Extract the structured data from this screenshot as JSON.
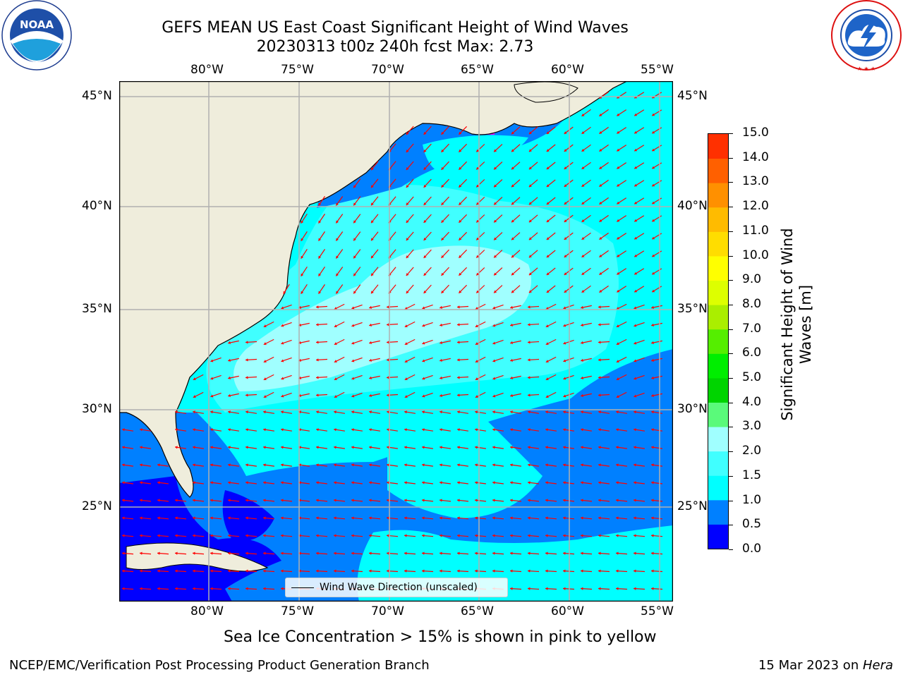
{
  "title": {
    "line1": "GEFS MEAN US East Coast Significant Height of Wind Waves",
    "line2": "20230313 t00z 240h fcst   Max: 2.73"
  },
  "logos": {
    "noaa": {
      "text": "NOAA",
      "ring_text": "NATIONAL OCEANIC AND ATMOSPHERIC ADMINISTRATION · U.S. DEPARTMENT OF COMMERCE"
    },
    "nws": {
      "ring_text": "NATIONAL WEATHER SERVICE"
    }
  },
  "map": {
    "lon_ticks": [
      "80°W",
      "75°W",
      "70°W",
      "65°W",
      "60°W",
      "55°W"
    ],
    "lat_ticks": [
      "45°N",
      "40°N",
      "35°N",
      "30°N",
      "25°N"
    ],
    "legend_label": "Wind Wave Direction (unscaled)",
    "colors": {
      "land": "#efeddc",
      "coast": "#000000",
      "grid": "#b0b0b0",
      "arrow": "#ff0000"
    }
  },
  "colorbar": {
    "title": "Significant Height of Wind Waves [m]",
    "ticks": [
      "15.0",
      "14.0",
      "13.0",
      "12.0",
      "11.0",
      "10.0",
      "9.0",
      "8.0",
      "7.0",
      "6.0",
      "5.0",
      "4.0",
      "3.0",
      "2.0",
      "1.5",
      "1.0",
      "0.5",
      "0.0"
    ],
    "colors_bottom_to_top": [
      "#0000ff",
      "#0080ff",
      "#00ffff",
      "#40ffff",
      "#a0ffff",
      "#5afa7a",
      "#00d400",
      "#00ee00",
      "#55ee00",
      "#aaee00",
      "#ddff00",
      "#ffff00",
      "#ffdd00",
      "#ffbb00",
      "#ff9000",
      "#ff6000",
      "#ff3000",
      "#ff0000"
    ]
  },
  "caption": "Sea Ice Concentration > 15% is shown in pink to yellow",
  "footer": {
    "left": "NCEP/EMC/Verification Post Processing Product Generation Branch",
    "right_prefix": "15 Mar 2023 on ",
    "right_host": "Hera"
  }
}
